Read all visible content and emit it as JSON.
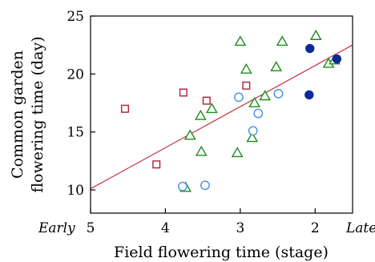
{
  "chart_data": {
    "type": "scatter",
    "title": "",
    "xlabel": "Field flowering time (stage)",
    "ylabel_lines": [
      "Common garden",
      "flowering time (day)"
    ],
    "x_reversed": true,
    "xlim": [
      5.0,
      1.5
    ],
    "ylim": [
      8,
      25
    ],
    "x_ticks": [
      {
        "value": 5,
        "label": "5"
      },
      {
        "value": 4,
        "label": "4"
      },
      {
        "value": 3,
        "label": "3"
      },
      {
        "value": 2,
        "label": "2"
      }
    ],
    "y_ticks": [
      {
        "value": 10,
        "label": "10"
      },
      {
        "value": 15,
        "label": "15"
      },
      {
        "value": 20,
        "label": "20"
      },
      {
        "value": 25,
        "label": "25"
      }
    ],
    "x_end_labels": {
      "left": "Early",
      "right": "Late"
    },
    "grid": false,
    "legend": "none",
    "series": [
      {
        "marker": "square-open",
        "color": "#a8203a",
        "points": [
          [
            4.54,
            17.0
          ],
          [
            4.12,
            12.2
          ],
          [
            3.76,
            18.4
          ],
          [
            3.45,
            17.7
          ],
          [
            2.92,
            19.0
          ]
        ]
      },
      {
        "marker": "triangle-open",
        "color": "#1e8c1e",
        "points": [
          [
            3.73,
            10.2
          ],
          [
            3.67,
            14.7
          ],
          [
            3.53,
            16.4
          ],
          [
            3.52,
            13.3
          ],
          [
            3.38,
            17.0
          ],
          [
            3.04,
            13.2
          ],
          [
            3.0,
            22.8
          ],
          [
            2.92,
            20.4
          ],
          [
            2.84,
            14.5
          ],
          [
            2.81,
            17.5
          ],
          [
            2.67,
            18.1
          ],
          [
            2.52,
            20.6
          ],
          [
            2.44,
            22.8
          ],
          [
            1.99,
            23.3
          ],
          [
            1.82,
            20.9
          ],
          [
            1.74,
            21.2
          ]
        ]
      },
      {
        "marker": "circle-open",
        "color": "#4a8ee0",
        "points": [
          [
            3.77,
            10.3
          ],
          [
            3.47,
            10.4
          ],
          [
            3.02,
            18.0
          ],
          [
            2.83,
            15.1
          ],
          [
            2.76,
            16.6
          ],
          [
            2.49,
            18.3
          ]
        ]
      },
      {
        "marker": "circle-filled",
        "color": "#0c2a9a",
        "points": [
          [
            2.07,
            22.2
          ],
          [
            2.08,
            18.2
          ],
          [
            1.71,
            21.3
          ]
        ]
      }
    ],
    "fit_line": {
      "color": "#c83c4a",
      "points": [
        [
          5.0,
          10.1
        ],
        [
          1.5,
          22.5
        ]
      ]
    }
  }
}
